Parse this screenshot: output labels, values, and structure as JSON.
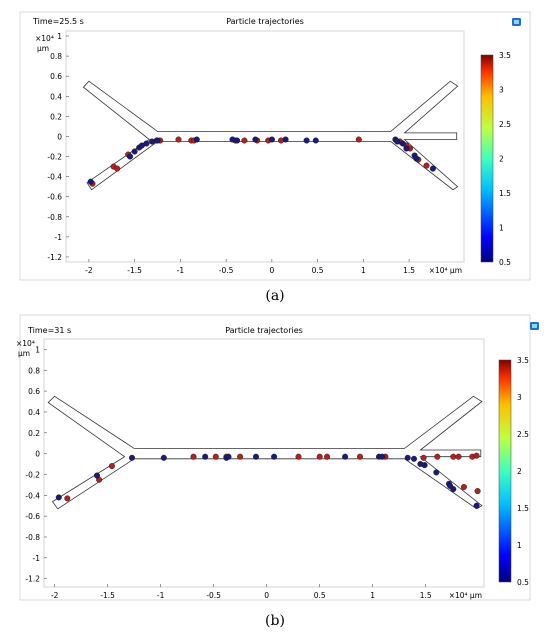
{
  "captions": [
    "(a)",
    "(b)"
  ],
  "chart_data": [
    {
      "type": "scatter",
      "time_label": "Time=25.5 s",
      "title": "Particle trajectories",
      "x_exponent_label": "×10⁴ μm",
      "y_exponent_label": "×10⁴",
      "y_unit": "μm",
      "xticks": [
        "-2",
        "-1.5",
        "-1",
        "-0.5",
        "0",
        "0.5",
        "1",
        "1.5"
      ],
      "yticks": [
        "1",
        "0.8",
        "0.6",
        "0.4",
        "0.2",
        "0",
        "-0.2",
        "-0.4",
        "-0.6",
        "-0.8",
        "-1",
        "-1.2"
      ],
      "xlim": [
        -2.25,
        2.1
      ],
      "ylim": [
        -1.25,
        1.05
      ],
      "colorbar": {
        "min": 0.5,
        "max": 3.5,
        "ticks": [
          "3.5",
          "3",
          "2.5",
          "2",
          "1.5",
          "1",
          "0.5"
        ]
      },
      "series": [
        {
          "color": "#b22020",
          "points": [
            [
              -1.96,
              -0.47
            ],
            [
              -1.73,
              -0.3
            ],
            [
              -1.69,
              -0.32
            ],
            [
              -1.57,
              -0.18
            ],
            [
              -1.26,
              -0.04
            ],
            [
              -1.22,
              -0.04
            ],
            [
              -1.02,
              -0.03
            ],
            [
              -0.88,
              -0.04
            ],
            [
              -0.85,
              -0.04
            ],
            [
              -0.4,
              -0.04
            ],
            [
              -0.3,
              -0.04
            ],
            [
              -0.16,
              -0.04
            ],
            [
              -0.04,
              -0.04
            ],
            [
              0.1,
              -0.04
            ],
            [
              0.95,
              -0.03
            ],
            [
              1.4,
              -0.05
            ],
            [
              1.47,
              -0.09
            ],
            [
              1.51,
              -0.12
            ],
            [
              1.6,
              -0.23
            ],
            [
              1.69,
              -0.29
            ]
          ]
        },
        {
          "color": "#1a1a7a",
          "points": [
            [
              -1.98,
              -0.45
            ],
            [
              -1.55,
              -0.2
            ],
            [
              -1.5,
              -0.15
            ],
            [
              -1.45,
              -0.11
            ],
            [
              -1.42,
              -0.09
            ],
            [
              -1.37,
              -0.07
            ],
            [
              -1.31,
              -0.05
            ],
            [
              -1.25,
              -0.04
            ],
            [
              -0.82,
              -0.03
            ],
            [
              -0.43,
              -0.03
            ],
            [
              -0.38,
              -0.04
            ],
            [
              -0.18,
              -0.03
            ],
            [
              0.0,
              -0.03
            ],
            [
              0.15,
              -0.03
            ],
            [
              0.38,
              -0.04
            ],
            [
              0.48,
              -0.04
            ],
            [
              1.35,
              -0.03
            ],
            [
              1.37,
              -0.05
            ],
            [
              1.43,
              -0.07
            ],
            [
              1.47,
              -0.12
            ],
            [
              1.56,
              -0.19
            ],
            [
              1.58,
              -0.22
            ],
            [
              1.76,
              -0.32
            ]
          ]
        }
      ]
    },
    {
      "type": "scatter",
      "time_label": "Time=31 s",
      "title": "Particle trajectories",
      "x_exponent_label": "×10⁴ μm",
      "y_exponent_label": "×10⁴",
      "y_unit": "μm",
      "xticks": [
        "-2",
        "-1.5",
        "-1",
        "-0.5",
        "0",
        "0.5",
        "1",
        "1.5"
      ],
      "yticks": [
        "1",
        "0.8",
        "0.6",
        "0.4",
        "0.2",
        "0",
        "-0.2",
        "-0.4",
        "-0.6",
        "-0.8",
        "-1",
        "-1.2"
      ],
      "xlim": [
        -2.1,
        2.05
      ],
      "ylim": [
        -1.28,
        1.1
      ],
      "colorbar": {
        "min": 0.5,
        "max": 3.5,
        "ticks": [
          "3.5",
          "3",
          "2.5",
          "2",
          "1.5",
          "1",
          "0.5"
        ]
      },
      "series": [
        {
          "color": "#b22020",
          "points": [
            [
              -1.88,
              -0.43
            ],
            [
              -1.58,
              -0.25
            ],
            [
              -1.46,
              -0.12
            ],
            [
              -0.69,
              -0.03
            ],
            [
              -0.48,
              -0.03
            ],
            [
              -0.38,
              -0.03
            ],
            [
              -0.25,
              -0.03
            ],
            [
              0.3,
              -0.03
            ],
            [
              0.5,
              -0.03
            ],
            [
              0.57,
              -0.03
            ],
            [
              0.88,
              -0.03
            ],
            [
              1.12,
              -0.03
            ],
            [
              1.48,
              -0.04
            ],
            [
              1.61,
              -0.03
            ],
            [
              1.76,
              -0.03
            ],
            [
              1.81,
              -0.03
            ],
            [
              1.86,
              -0.32
            ],
            [
              1.94,
              -0.03
            ],
            [
              1.98,
              -0.02
            ],
            [
              1.99,
              -0.36
            ]
          ]
        },
        {
          "color": "#1a1a7a",
          "points": [
            [
              -1.96,
              -0.42
            ],
            [
              -1.6,
              -0.21
            ],
            [
              -1.27,
              -0.04
            ],
            [
              -0.97,
              -0.04
            ],
            [
              -0.58,
              -0.03
            ],
            [
              -0.38,
              -0.04
            ],
            [
              -0.36,
              -0.03
            ],
            [
              -0.1,
              -0.03
            ],
            [
              0.07,
              -0.03
            ],
            [
              0.74,
              -0.03
            ],
            [
              1.06,
              -0.03
            ],
            [
              1.09,
              -0.03
            ],
            [
              1.33,
              -0.04
            ],
            [
              1.39,
              -0.05
            ],
            [
              1.45,
              -0.1
            ],
            [
              1.49,
              -0.11
            ],
            [
              1.6,
              -0.18
            ],
            [
              1.72,
              -0.29
            ],
            [
              1.73,
              -0.31
            ],
            [
              1.76,
              -0.34
            ],
            [
              1.98,
              -0.5
            ]
          ]
        }
      ]
    }
  ]
}
